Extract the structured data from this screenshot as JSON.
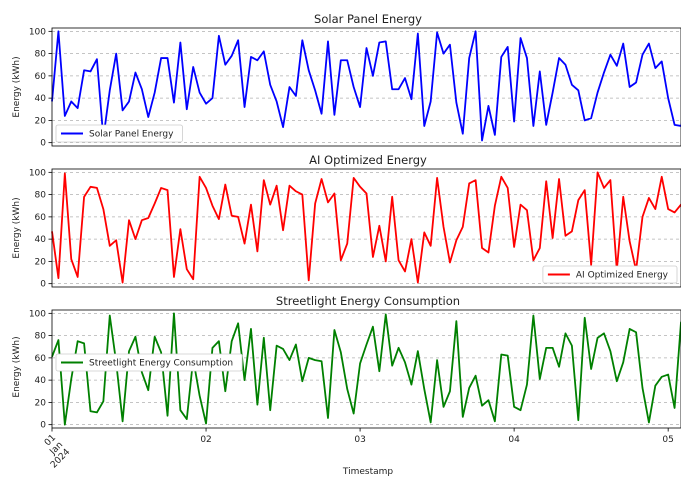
{
  "chart_data": [
    {
      "type": "line",
      "title": "Solar Panel Energy",
      "xlabel": "",
      "ylabel": "Energy (kWh)",
      "ylim": [
        -3,
        103
      ],
      "yticks": [
        0,
        20,
        40,
        60,
        80,
        100
      ],
      "xlim": [
        0,
        98
      ],
      "grid": "horizontal dashed",
      "legend_loc": "lower-left",
      "series": [
        {
          "name": "Solar Panel Energy",
          "color": "#0000ff",
          "values": [
            37,
            100,
            24,
            37,
            31,
            65,
            64,
            75,
            4,
            47,
            80,
            29,
            37,
            63,
            48,
            23,
            45,
            76,
            76,
            36,
            90,
            30,
            68,
            45,
            35,
            40,
            96,
            70,
            78,
            92,
            32,
            77,
            74,
            82,
            52,
            37,
            14,
            50,
            42,
            92,
            65,
            47,
            26,
            91,
            25,
            74,
            74,
            50,
            32,
            85,
            60,
            90,
            91,
            48,
            48,
            58,
            39,
            98,
            15,
            37,
            99,
            80,
            88,
            36,
            8,
            76,
            100,
            2,
            33,
            7,
            77,
            86,
            19,
            94,
            76,
            15,
            64,
            16,
            45,
            76,
            70,
            52,
            47,
            20,
            22,
            45,
            63,
            79,
            69,
            89,
            50,
            54,
            79,
            89,
            67,
            73,
            40,
            16,
            15,
            40
          ]
        }
      ]
    },
    {
      "type": "line",
      "title": "AI Optimized Energy",
      "xlabel": "",
      "ylabel": "Energy (kWh)",
      "ylim": [
        -3,
        103
      ],
      "yticks": [
        0,
        20,
        40,
        60,
        80,
        100
      ],
      "xlim": [
        0,
        98
      ],
      "grid": "horizontal dashed",
      "legend_loc": "lower-right",
      "series": [
        {
          "name": "AI Optimized Energy",
          "color": "#ff0000",
          "values": [
            47,
            5,
            99,
            22,
            6,
            78,
            87,
            86,
            67,
            34,
            39,
            1,
            57,
            40,
            57,
            59,
            72,
            86,
            84,
            6,
            49,
            13,
            4,
            96,
            86,
            70,
            58,
            89,
            61,
            60,
            36,
            71,
            29,
            93,
            71,
            88,
            48,
            88,
            83,
            80,
            3,
            72,
            94,
            73,
            81,
            21,
            36,
            95,
            87,
            81,
            24,
            52,
            20,
            78,
            21,
            11,
            40,
            1,
            46,
            34,
            95,
            51,
            19,
            39,
            51,
            90,
            93,
            32,
            28,
            70,
            96,
            86,
            33,
            71,
            66,
            21,
            32,
            92,
            41,
            94,
            43,
            47,
            75,
            84,
            17,
            100,
            86,
            93,
            12,
            78,
            38,
            12,
            60,
            77,
            67,
            96,
            67,
            64,
            71,
            51
          ]
        }
      ]
    },
    {
      "type": "line",
      "title": "Streetlight Energy Consumption",
      "xlabel": "Timestamp",
      "ylabel": "Energy (kWh)",
      "ylim": [
        -3,
        103
      ],
      "yticks": [
        0,
        20,
        40,
        60,
        80,
        100
      ],
      "xlim": [
        0,
        98
      ],
      "x_tick_labels": [
        "01\nJan\n2024",
        "02",
        "03",
        "04",
        "05"
      ],
      "x_tick_positions": [
        0,
        24,
        48,
        72,
        96
      ],
      "grid": "horizontal dashed",
      "legend_loc": "upper-left",
      "series": [
        {
          "name": "Streetlight Energy Consumption",
          "color": "#008000",
          "values": [
            61,
            76,
            0,
            41,
            75,
            73,
            12,
            11,
            21,
            98,
            56,
            3,
            66,
            79,
            47,
            31,
            79,
            65,
            8,
            100,
            13,
            5,
            59,
            26,
            1,
            69,
            75,
            30,
            75,
            91,
            40,
            86,
            18,
            78,
            13,
            71,
            68,
            58,
            72,
            39,
            60,
            58,
            57,
            6,
            85,
            65,
            32,
            10,
            55,
            72,
            88,
            48,
            99,
            53,
            69,
            56,
            36,
            66,
            32,
            2,
            58,
            16,
            30,
            93,
            7,
            33,
            44,
            17,
            22,
            3,
            63,
            62,
            16,
            13,
            36,
            98,
            41,
            69,
            69,
            52,
            82,
            71,
            4,
            96,
            50,
            78,
            82,
            66,
            39,
            56,
            86,
            83,
            33,
            2,
            35,
            43,
            45,
            15,
            92,
            65
          ]
        }
      ]
    }
  ]
}
